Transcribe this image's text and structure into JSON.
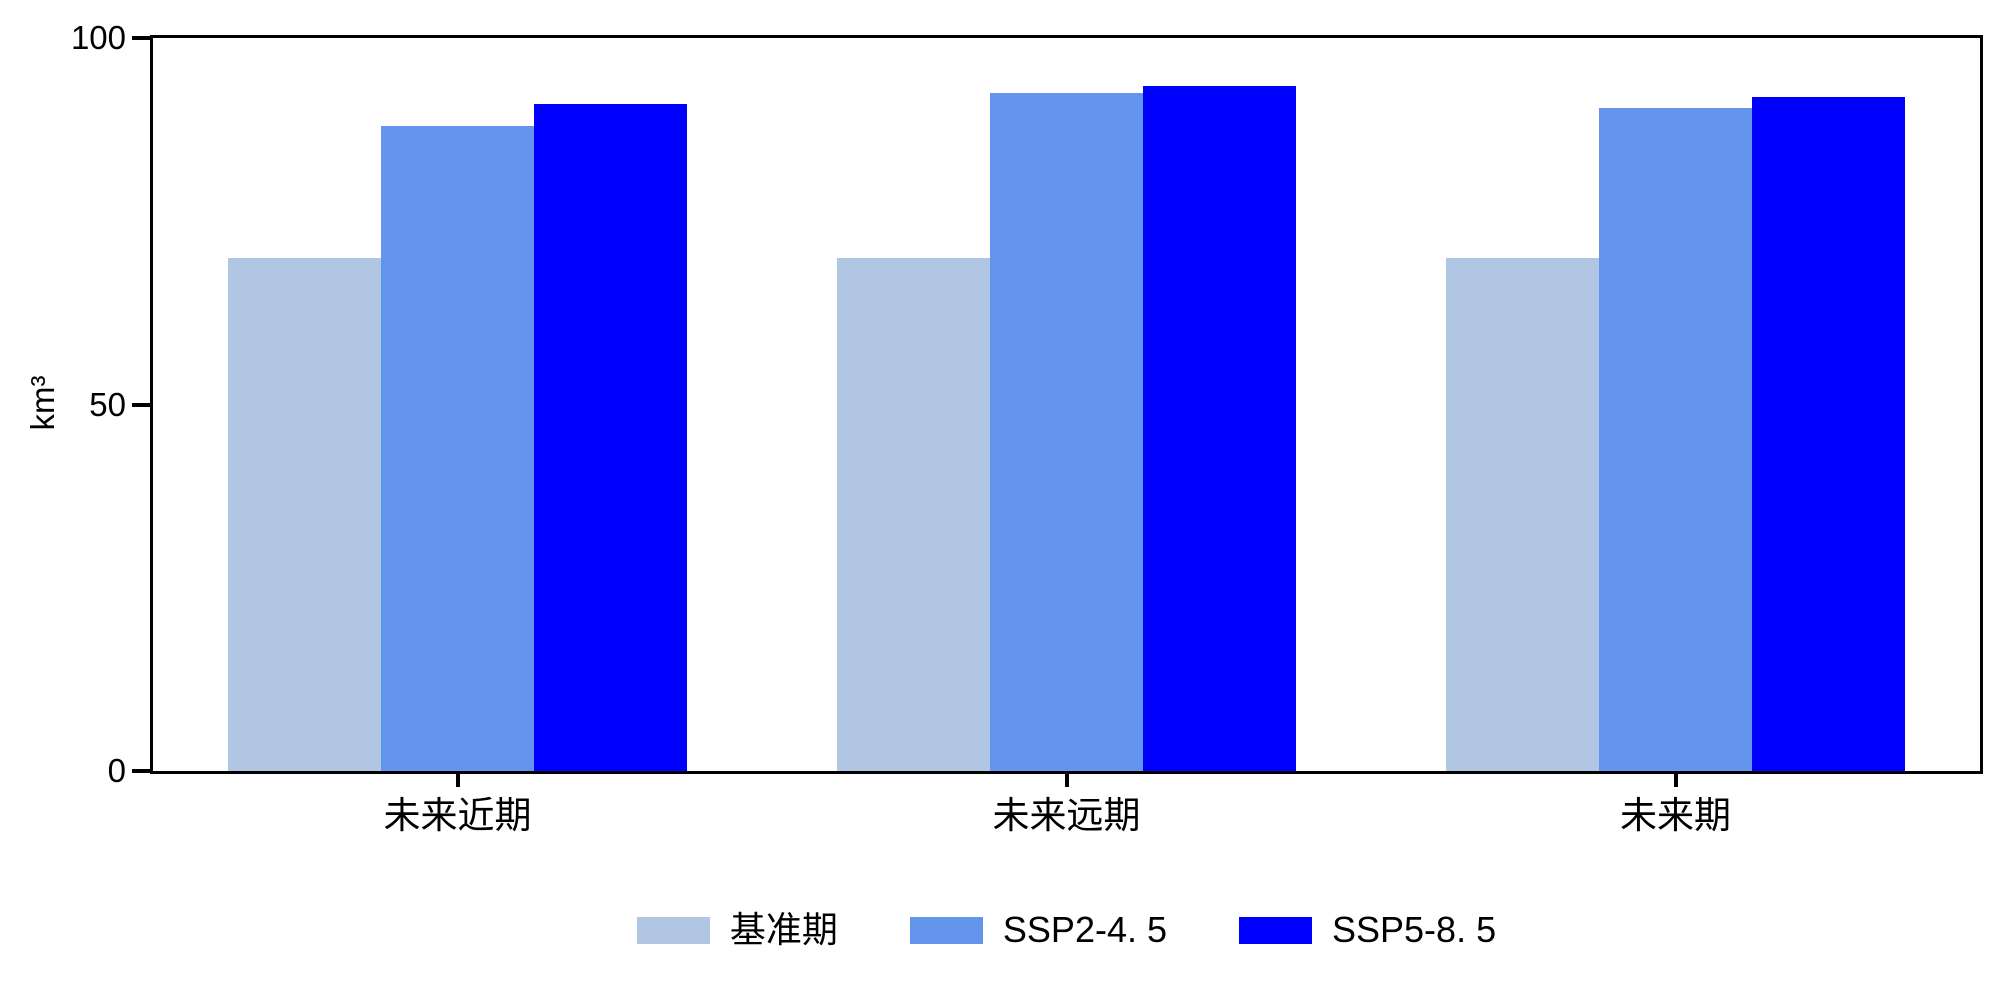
{
  "chart_data": {
    "type": "bar",
    "title": "",
    "categories": [
      "未来近期",
      "未来远期",
      "未来期"
    ],
    "series": [
      {
        "name": "基准期",
        "color": "#b0c6e2",
        "values": [
          70,
          70,
          70
        ]
      },
      {
        "name": "SSP2-4. 5",
        "color": "#6495ed",
        "values": [
          88,
          92.5,
          90.5
        ]
      },
      {
        "name": "SSP5-8. 5",
        "color": "#0000ff",
        "values": [
          91,
          93.5,
          92
        ]
      }
    ],
    "xlabel": "",
    "ylabel": "km³",
    "ylim": [
      0,
      100
    ],
    "yticks": [
      0,
      50,
      100
    ],
    "grid": false,
    "legend_position": "bottom-center",
    "frame": "full-box",
    "axis_color": "#000000",
    "background_color": "#ffffff",
    "bar_group_layout": {
      "bars_per_group": 3,
      "bars_touch_within_group": true
    }
  }
}
